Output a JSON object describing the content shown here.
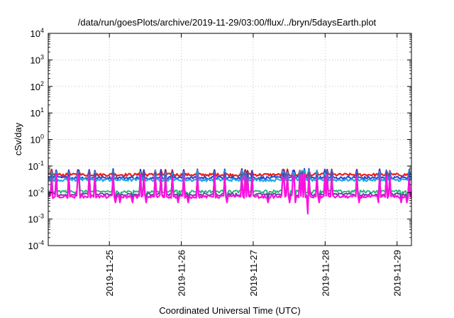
{
  "chart_data": {
    "type": "line",
    "title": "/data/run/goesPlots/archive/2019-11-29/03:00/flux/../bryn/5daysEarth.plot",
    "xlabel": "Coordinated Universal Time (UTC)",
    "ylabel": "cSv/day",
    "yscale": "log",
    "ylim_exp": [
      -4,
      4
    ],
    "y_tick_exponents": [
      -4,
      -3,
      -2,
      -1,
      0,
      1,
      2,
      3,
      4
    ],
    "xlim_days": [
      24.15,
      29.2
    ],
    "x_ticks": [
      {
        "label": "2019-11-25",
        "day": 25
      },
      {
        "label": "2019-11-26",
        "day": 26
      },
      {
        "label": "2019-11-27",
        "day": 27
      },
      {
        "label": "2019-11-28",
        "day": 28
      },
      {
        "label": "2019-11-29",
        "day": 29
      }
    ],
    "grid": true,
    "series": [
      {
        "color": "#e8201c",
        "base": 0.047,
        "spike": 0.075,
        "width": 2.2
      },
      {
        "color": "#2a3fd6",
        "base": 0.036,
        "spike": 0.08,
        "width": 2.0
      },
      {
        "color": "#1aa7e0",
        "base": 0.03,
        "spike": 0.07,
        "width": 2.0
      },
      {
        "color": "#20b07a",
        "base": 0.011,
        "spike": 0.06,
        "width": 1.8
      },
      {
        "color": "#7a2ea8",
        "base": 0.0085,
        "spike": 0.06,
        "width": 1.8
      },
      {
        "color": "#ff10e0",
        "base": 0.007,
        "spike": 0.05,
        "width": 2.2
      }
    ]
  }
}
